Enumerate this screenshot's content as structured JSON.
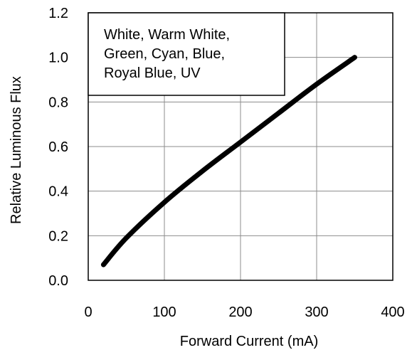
{
  "chart_data": {
    "type": "line",
    "title": "",
    "xlabel": "Forward Current (mA)",
    "ylabel": "Relative Luminous Flux",
    "xlim": [
      0,
      400
    ],
    "ylim": [
      0.0,
      1.2
    ],
    "x_ticks": [
      0,
      100,
      200,
      300,
      400
    ],
    "y_ticks": [
      0.0,
      0.2,
      0.4,
      0.6,
      0.8,
      1.0,
      1.2
    ],
    "x_tick_labels": [
      "0",
      "100",
      "200",
      "300",
      "400"
    ],
    "y_tick_labels": [
      "0.0",
      "0.2",
      "0.4",
      "0.6",
      "0.8",
      "1.0",
      "1.2"
    ],
    "grid": true,
    "legend_placement": "top-left",
    "legend_lines": [
      "White, Warm White,",
      "Green, Cyan, Blue,",
      "Royal Blue, UV"
    ],
    "series": [
      {
        "x": [
          20,
          50,
          100,
          150,
          200,
          250,
          300,
          350
        ],
        "y": [
          0.07,
          0.19,
          0.35,
          0.49,
          0.62,
          0.75,
          0.88,
          1.0
        ],
        "color": "#000000"
      }
    ]
  }
}
